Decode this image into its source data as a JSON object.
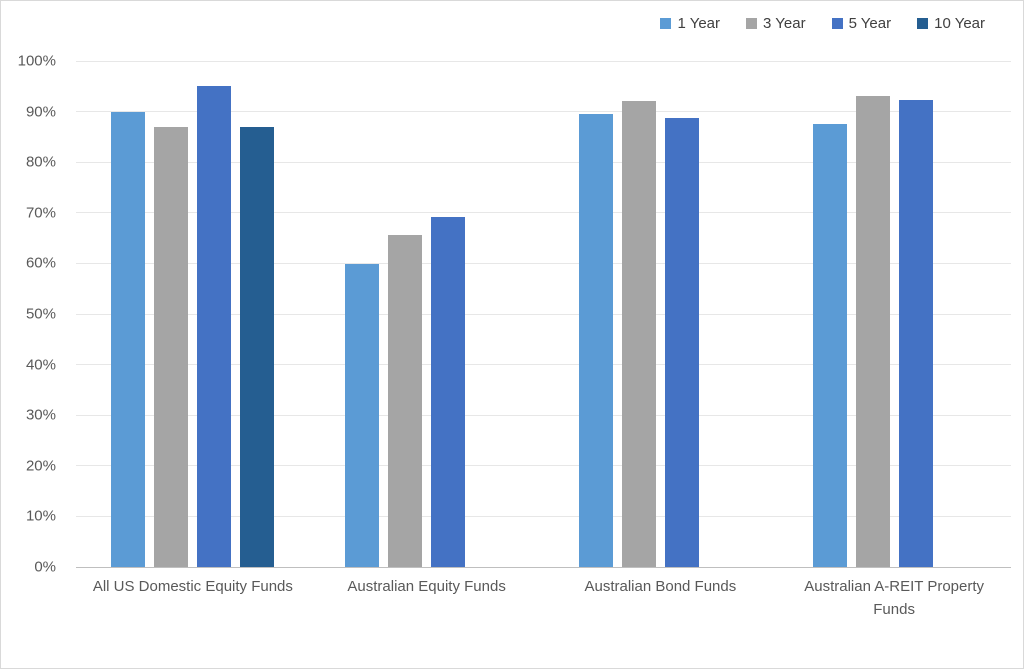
{
  "chart": {
    "background": "#FFFFFF",
    "border_color": "#D9D9D9",
    "gridline_color": "#E7E7E7",
    "axis_line_color": "#BFBFBF",
    "axis_text_color": "#595959",
    "legend_text_color": "#404040"
  },
  "chart_data": {
    "type": "bar",
    "categories": [
      "All US Domestic Equity Funds",
      "Australian Equity Funds",
      "Australian Bond Funds",
      "Australian A-REIT Property Funds"
    ],
    "series": [
      {
        "name": "1 Year",
        "color": "#5B9BD5",
        "values": [
          90,
          59.8,
          89.5,
          87.5
        ]
      },
      {
        "name": "3 Year",
        "color": "#A5A5A5",
        "values": [
          87,
          65.7,
          92,
          93
        ]
      },
      {
        "name": "5 Year",
        "color": "#4472C4",
        "values": [
          95,
          69.2,
          88.7,
          92.3
        ]
      },
      {
        "name": "10 Year",
        "color": "#255E91",
        "values": [
          87,
          null,
          null,
          null
        ]
      }
    ],
    "ylim": [
      0,
      100
    ],
    "ytick_step": 10,
    "yticklabels": [
      "0%",
      "10%",
      "20%",
      "30%",
      "40%",
      "50%",
      "60%",
      "70%",
      "80%",
      "90%",
      "100%"
    ],
    "grid": true,
    "legend_position": "top-right",
    "title": "",
    "xlabel": "",
    "ylabel": ""
  }
}
